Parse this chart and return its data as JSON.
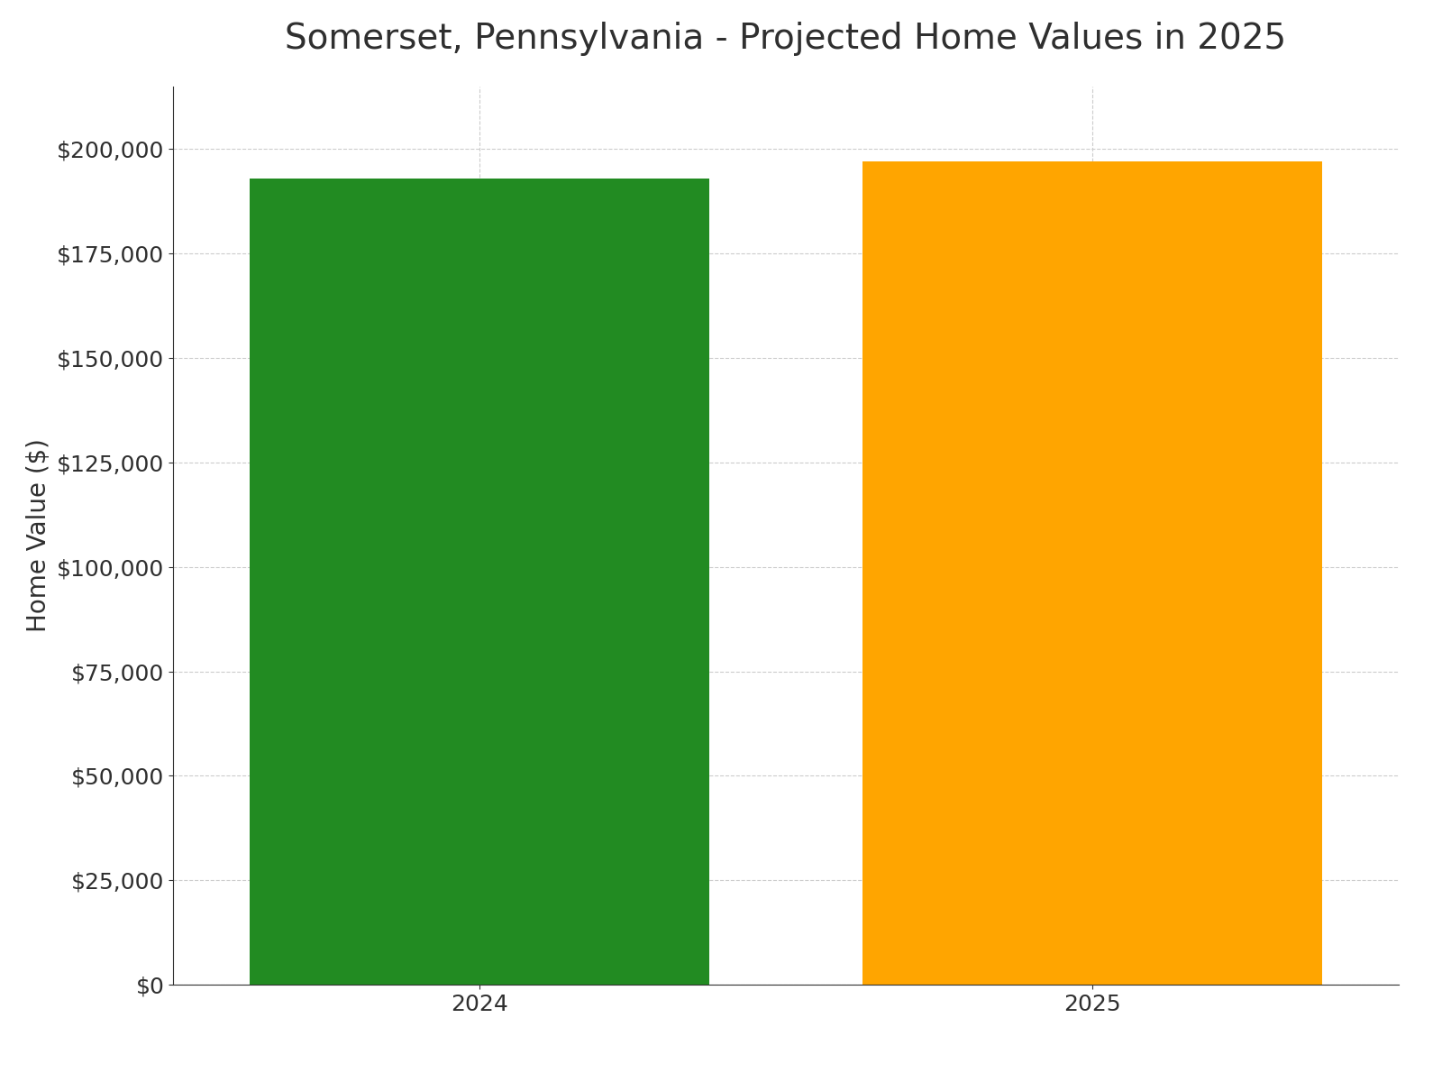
{
  "title": "Somerset, Pennsylvania - Projected Home Values in 2025",
  "categories": [
    "2024",
    "2025"
  ],
  "values": [
    193000,
    197000
  ],
  "bar_colors": [
    "#228B22",
    "#FFA500"
  ],
  "ylabel": "Home Value ($)",
  "ylim": [
    0,
    215000
  ],
  "yticks": [
    0,
    25000,
    50000,
    75000,
    100000,
    125000,
    150000,
    175000,
    200000
  ],
  "background_color": "#ffffff",
  "title_fontsize": 28,
  "axis_label_fontsize": 20,
  "tick_fontsize": 18,
  "bar_width": 0.75,
  "grid_color": "#cccccc",
  "title_color": "#2f2f2f",
  "tick_color": "#2f2f2f"
}
